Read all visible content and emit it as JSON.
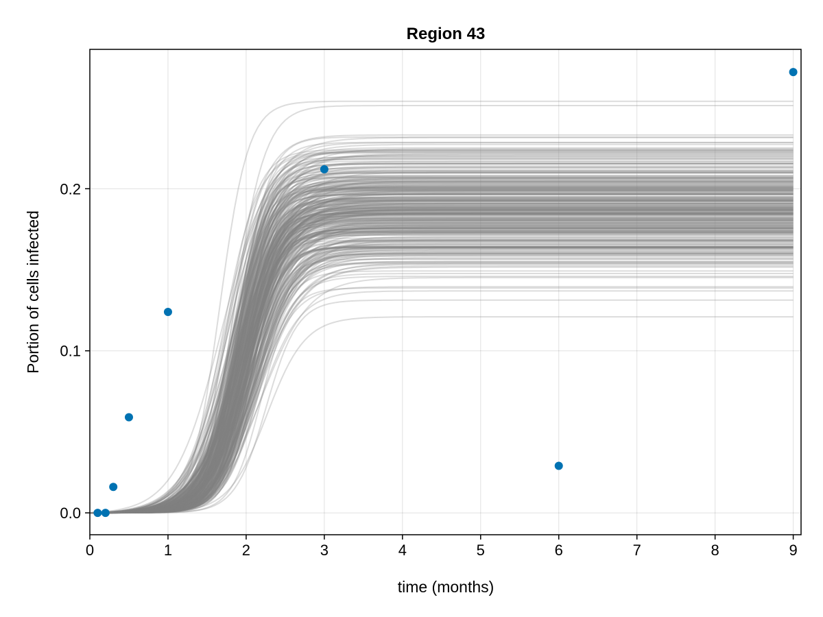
{
  "chart_data": {
    "type": "line",
    "title": "Region 43",
    "xlabel": "time (months)",
    "ylabel": "Portion of cells infected",
    "xlim": [
      0,
      9.1
    ],
    "ylim": [
      -0.0135,
      0.286
    ],
    "xticks": [
      0,
      1,
      2,
      3,
      4,
      5,
      6,
      7,
      8,
      9
    ],
    "xtick_labels": [
      "0",
      "1",
      "2",
      "3",
      "4",
      "5",
      "6",
      "7",
      "8",
      "9"
    ],
    "yticks": [
      0.0,
      0.1,
      0.2
    ],
    "ytick_labels": [
      "0.0",
      "0.1",
      "0.2"
    ],
    "grid": true,
    "legend": "none",
    "colors": {
      "observed": "#0072b2",
      "simulations": "#808080"
    },
    "observed": {
      "x": [
        0.1,
        0.2,
        0.3,
        0.5,
        1,
        3,
        6,
        9
      ],
      "y": [
        0.0,
        0.0,
        0.016,
        0.059,
        0.124,
        0.212,
        0.029,
        0.272
      ]
    },
    "simulations": {
      "count": 300,
      "x_range": [
        0,
        9
      ],
      "plateau_range": [
        0.121,
        0.254
      ],
      "midpoint_range": [
        1.5,
        2.45
      ],
      "steepness_range": [
        3.2,
        5.6
      ]
    }
  }
}
